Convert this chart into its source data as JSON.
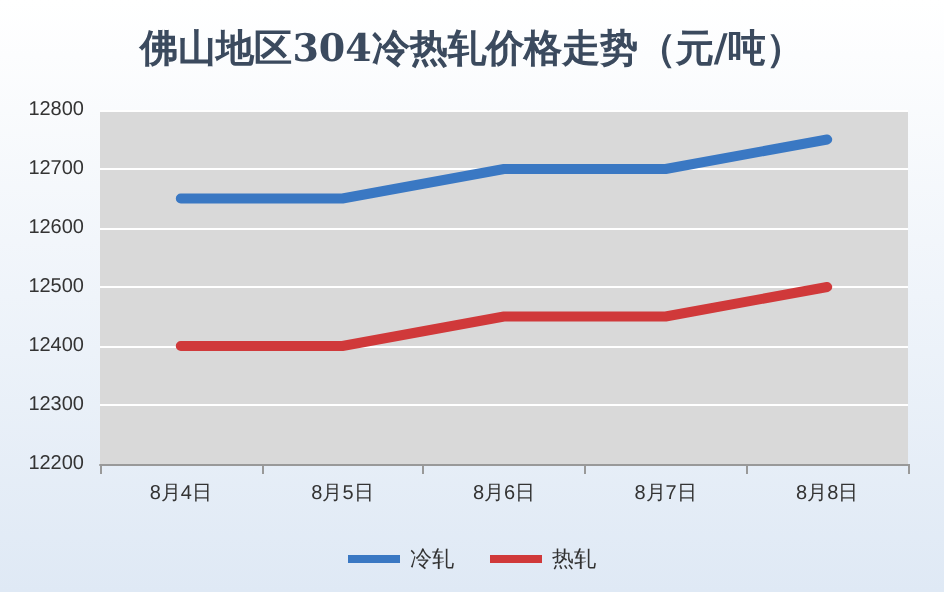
{
  "chart_data": {
    "type": "line",
    "title": "佛山地区304冷热轧价格走势（元/吨）",
    "categories": [
      "8月4日",
      "8月5日",
      "8月6日",
      "8月7日",
      "8月8日"
    ],
    "series": [
      {
        "name": "冷轧",
        "color": "#3a78c3",
        "values": [
          12650,
          12650,
          12700,
          12700,
          12750
        ]
      },
      {
        "name": "热轧",
        "color": "#d0393a",
        "values": [
          12400,
          12400,
          12450,
          12450,
          12500
        ]
      }
    ],
    "ylim": [
      12200,
      12800
    ],
    "yticks": [
      12200,
      12300,
      12400,
      12500,
      12600,
      12700,
      12800
    ],
    "grid": "y",
    "legend": "bottom",
    "marker": "none",
    "line_style": "solid"
  }
}
